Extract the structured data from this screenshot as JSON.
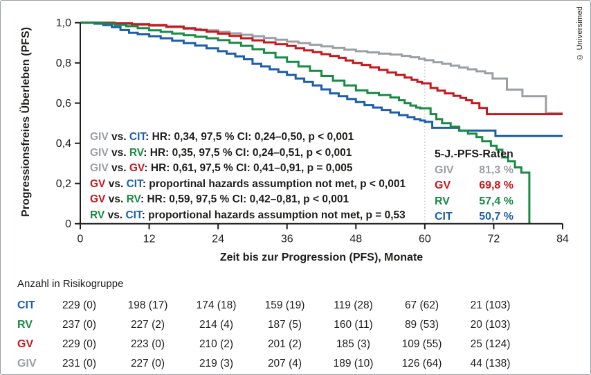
{
  "watermark": "© Universimed",
  "colors": {
    "GIV": "#9b9fa3",
    "GV": "#c8161c",
    "RV": "#178a43",
    "CIT": "#1b5eab",
    "text": "#1d1d1b",
    "axis": "#1d1d1b",
    "refline": "#a9a9a9"
  },
  "stats": {
    "separator": " vs. ",
    "lines": [
      {
        "g1": "GIV",
        "g2": "CIT",
        "text": ": HR: 0,34, 97,5 % CI: 0,24–0,50, p < 0,001"
      },
      {
        "g1": "GIV",
        "g2": "RV",
        "text": ": HR: 0,35, 97,5 % CI: 0,24–0,51, p < 0,001"
      },
      {
        "g1": "GIV",
        "g2": "GV",
        "text": ": HR: 0,61, 97,5 % CI: 0,41–0,91, p = 0,005"
      },
      {
        "g1": "GV",
        "g2": "CIT",
        "text": ": proportinal hazards assumption not met, p < 0,001"
      },
      {
        "g1": "GV",
        "g2": "RV",
        "text": ": HR: 0,59, 97,5 % CI: 0,42–0,81, p < 0,001"
      },
      {
        "g1": "RV",
        "g2": "CIT",
        "text": ": proportional hazards assumption not met, p = 0,53"
      }
    ]
  },
  "legend": {
    "title": "5-J.-PFS-Raten",
    "rows": [
      {
        "group": "GIV",
        "value": "81,3 %"
      },
      {
        "group": "GV",
        "value": "69,8 %"
      },
      {
        "group": "RV",
        "value": "57,4 %"
      },
      {
        "group": "CIT",
        "value": "50,7 %"
      }
    ]
  },
  "risk_table": {
    "title": "Anzahl in Risikogruppe",
    "timepoints": [
      0,
      12,
      24,
      36,
      48,
      60,
      72
    ],
    "rows": [
      {
        "group": "CIT",
        "values": [
          "229 (0)",
          "198 (17)",
          "174 (18)",
          "159 (19)",
          "119 (28)",
          "67 (62)",
          "21 (103)"
        ]
      },
      {
        "group": "RV",
        "values": [
          "237 (0)",
          "227 (2)",
          "214 (4)",
          "187 (5)",
          "160 (11)",
          "89 (53)",
          "20 (103)"
        ]
      },
      {
        "group": "GV",
        "values": [
          "229 (0)",
          "223 (0)",
          "210 (2)",
          "201 (2)",
          "185 (3)",
          "109 (55)",
          "25 (124)"
        ]
      },
      {
        "group": "GIV",
        "values": [
          "231 (0)",
          "227 (0)",
          "219 (3)",
          "207 (4)",
          "189 (10)",
          "126 (64)",
          "44 (138)"
        ]
      }
    ]
  },
  "chart_data": {
    "type": "line",
    "subtype": "kaplan-meier-step",
    "title": "",
    "xlabel": "Zeit bis zur Progression (PFS), Monate",
    "ylabel": "Progressionsfreies Überleben (PFS)",
    "xlim": [
      0,
      84
    ],
    "ylim": [
      0,
      1.0
    ],
    "xticks": [
      0,
      12,
      24,
      36,
      48,
      60,
      72,
      84
    ],
    "yticks": [
      1.0,
      0.8,
      0.6,
      0.4,
      0.2,
      0
    ],
    "ytick_labels": [
      "1,0",
      "0,8",
      "0,6",
      "0,4",
      "0,2",
      "0"
    ],
    "grid": false,
    "reference_line_x": 60,
    "five_year_pfs_rates": {
      "GIV": 0.813,
      "GV": 0.698,
      "RV": 0.574,
      "CIT": 0.507
    },
    "series": [
      {
        "name": "GIV",
        "step": true,
        "points": [
          [
            0,
            1
          ],
          [
            3,
            0.997
          ],
          [
            6,
            0.993
          ],
          [
            9,
            0.988
          ],
          [
            12,
            0.984
          ],
          [
            15,
            0.977
          ],
          [
            18,
            0.969
          ],
          [
            21,
            0.962
          ],
          [
            24,
            0.954
          ],
          [
            26,
            0.947
          ],
          [
            28,
            0.94
          ],
          [
            30,
            0.932
          ],
          [
            32,
            0.924
          ],
          [
            34,
            0.915
          ],
          [
            36,
            0.906
          ],
          [
            38,
            0.898
          ],
          [
            40,
            0.89
          ],
          [
            42,
            0.882
          ],
          [
            44,
            0.874
          ],
          [
            46,
            0.866
          ],
          [
            48,
            0.858
          ],
          [
            50,
            0.852
          ],
          [
            52,
            0.846
          ],
          [
            54,
            0.841
          ],
          [
            56,
            0.835
          ],
          [
            57.5,
            0.828
          ],
          [
            59,
            0.82
          ],
          [
            60,
            0.813
          ],
          [
            61.5,
            0.803
          ],
          [
            63,
            0.795
          ],
          [
            64.5,
            0.786
          ],
          [
            66,
            0.777
          ],
          [
            67.5,
            0.768
          ],
          [
            69,
            0.758
          ],
          [
            70.5,
            0.748
          ],
          [
            71.8,
            0.722
          ],
          [
            74.3,
            0.667
          ],
          [
            77,
            0.634
          ],
          [
            81.1,
            0.55
          ],
          [
            84,
            0.55
          ]
        ]
      },
      {
        "name": "GV",
        "step": true,
        "points": [
          [
            0,
            1
          ],
          [
            6,
            0.997
          ],
          [
            9,
            0.993
          ],
          [
            12,
            0.988
          ],
          [
            15,
            0.981
          ],
          [
            18,
            0.972
          ],
          [
            20,
            0.964
          ],
          [
            22,
            0.955
          ],
          [
            24,
            0.945
          ],
          [
            26,
            0.934
          ],
          [
            28,
            0.922
          ],
          [
            30,
            0.912
          ],
          [
            32,
            0.902
          ],
          [
            34,
            0.893
          ],
          [
            36,
            0.884
          ],
          [
            37.5,
            0.872
          ],
          [
            39,
            0.862
          ],
          [
            40.5,
            0.853
          ],
          [
            42,
            0.843
          ],
          [
            43.5,
            0.834
          ],
          [
            45,
            0.825
          ],
          [
            46.2,
            0.812
          ],
          [
            47.5,
            0.8
          ],
          [
            49,
            0.79
          ],
          [
            50.5,
            0.778
          ],
          [
            52,
            0.765
          ],
          [
            53.5,
            0.752
          ],
          [
            55,
            0.74
          ],
          [
            56.5,
            0.727
          ],
          [
            57.7,
            0.715
          ],
          [
            58.7,
            0.705
          ],
          [
            59.5,
            0.698
          ],
          [
            61,
            0.675
          ],
          [
            62.2,
            0.662
          ],
          [
            63.5,
            0.648
          ],
          [
            65,
            0.636
          ],
          [
            66.2,
            0.626
          ],
          [
            67.2,
            0.614
          ],
          [
            68.2,
            0.6
          ],
          [
            69.5,
            0.576
          ],
          [
            70.8,
            0.545
          ],
          [
            84,
            0.545
          ]
        ]
      },
      {
        "name": "CIT",
        "step": true,
        "points": [
          [
            0,
            1
          ],
          [
            2.5,
            0.995
          ],
          [
            4,
            0.988
          ],
          [
            5.5,
            0.978
          ],
          [
            7,
            0.963
          ],
          [
            8.5,
            0.95
          ],
          [
            10,
            0.942
          ],
          [
            12,
            0.932
          ],
          [
            14,
            0.922
          ],
          [
            16,
            0.91
          ],
          [
            18,
            0.898
          ],
          [
            20,
            0.886
          ],
          [
            22,
            0.872
          ],
          [
            24,
            0.858
          ],
          [
            25.5,
            0.846
          ],
          [
            27,
            0.832
          ],
          [
            28.5,
            0.818
          ],
          [
            30,
            0.795
          ],
          [
            31.5,
            0.782
          ],
          [
            33,
            0.768
          ],
          [
            34.5,
            0.755
          ],
          [
            36,
            0.74
          ],
          [
            37.5,
            0.722
          ],
          [
            39,
            0.705
          ],
          [
            40.5,
            0.688
          ],
          [
            42,
            0.668
          ],
          [
            43.5,
            0.648
          ],
          [
            45,
            0.634
          ],
          [
            46.5,
            0.62
          ],
          [
            48,
            0.605
          ],
          [
            49.5,
            0.59
          ],
          [
            51,
            0.578
          ],
          [
            52.5,
            0.566
          ],
          [
            54,
            0.553
          ],
          [
            55.5,
            0.54
          ],
          [
            57,
            0.53
          ],
          [
            58.2,
            0.52
          ],
          [
            59.2,
            0.513
          ],
          [
            60,
            0.507
          ],
          [
            61.3,
            0.477
          ],
          [
            66,
            0.463
          ],
          [
            72.3,
            0.436
          ],
          [
            84,
            0.436
          ]
        ]
      },
      {
        "name": "RV",
        "step": true,
        "points": [
          [
            0,
            1
          ],
          [
            4,
            0.995
          ],
          [
            6,
            0.989
          ],
          [
            8,
            0.982
          ],
          [
            10,
            0.972
          ],
          [
            12,
            0.962
          ],
          [
            14,
            0.954
          ],
          [
            16,
            0.946
          ],
          [
            18,
            0.938
          ],
          [
            20,
            0.93
          ],
          [
            22,
            0.922
          ],
          [
            24,
            0.913
          ],
          [
            26,
            0.9
          ],
          [
            28,
            0.885
          ],
          [
            30,
            0.868
          ],
          [
            32,
            0.85
          ],
          [
            34,
            0.827
          ],
          [
            36,
            0.805
          ],
          [
            38,
            0.782
          ],
          [
            40,
            0.76
          ],
          [
            42,
            0.735
          ],
          [
            44,
            0.712
          ],
          [
            46,
            0.688
          ],
          [
            48,
            0.663
          ],
          [
            50,
            0.65
          ],
          [
            52,
            0.64
          ],
          [
            54,
            0.628
          ],
          [
            55.5,
            0.614
          ],
          [
            56.5,
            0.6
          ],
          [
            57.5,
            0.588
          ],
          [
            58.5,
            0.578
          ],
          [
            59.2,
            0.574
          ],
          [
            61,
            0.545
          ],
          [
            62,
            0.52
          ],
          [
            63,
            0.5
          ],
          [
            64.5,
            0.482
          ],
          [
            66,
            0.463
          ],
          [
            67.5,
            0.448
          ],
          [
            69,
            0.431
          ],
          [
            70,
            0.41
          ],
          [
            71.5,
            0.388
          ],
          [
            72.5,
            0.368
          ],
          [
            73.5,
            0.33
          ],
          [
            74.5,
            0.31
          ],
          [
            75.7,
            0.28
          ],
          [
            76.8,
            0.254
          ],
          [
            78.2,
            0
          ]
        ]
      }
    ]
  }
}
